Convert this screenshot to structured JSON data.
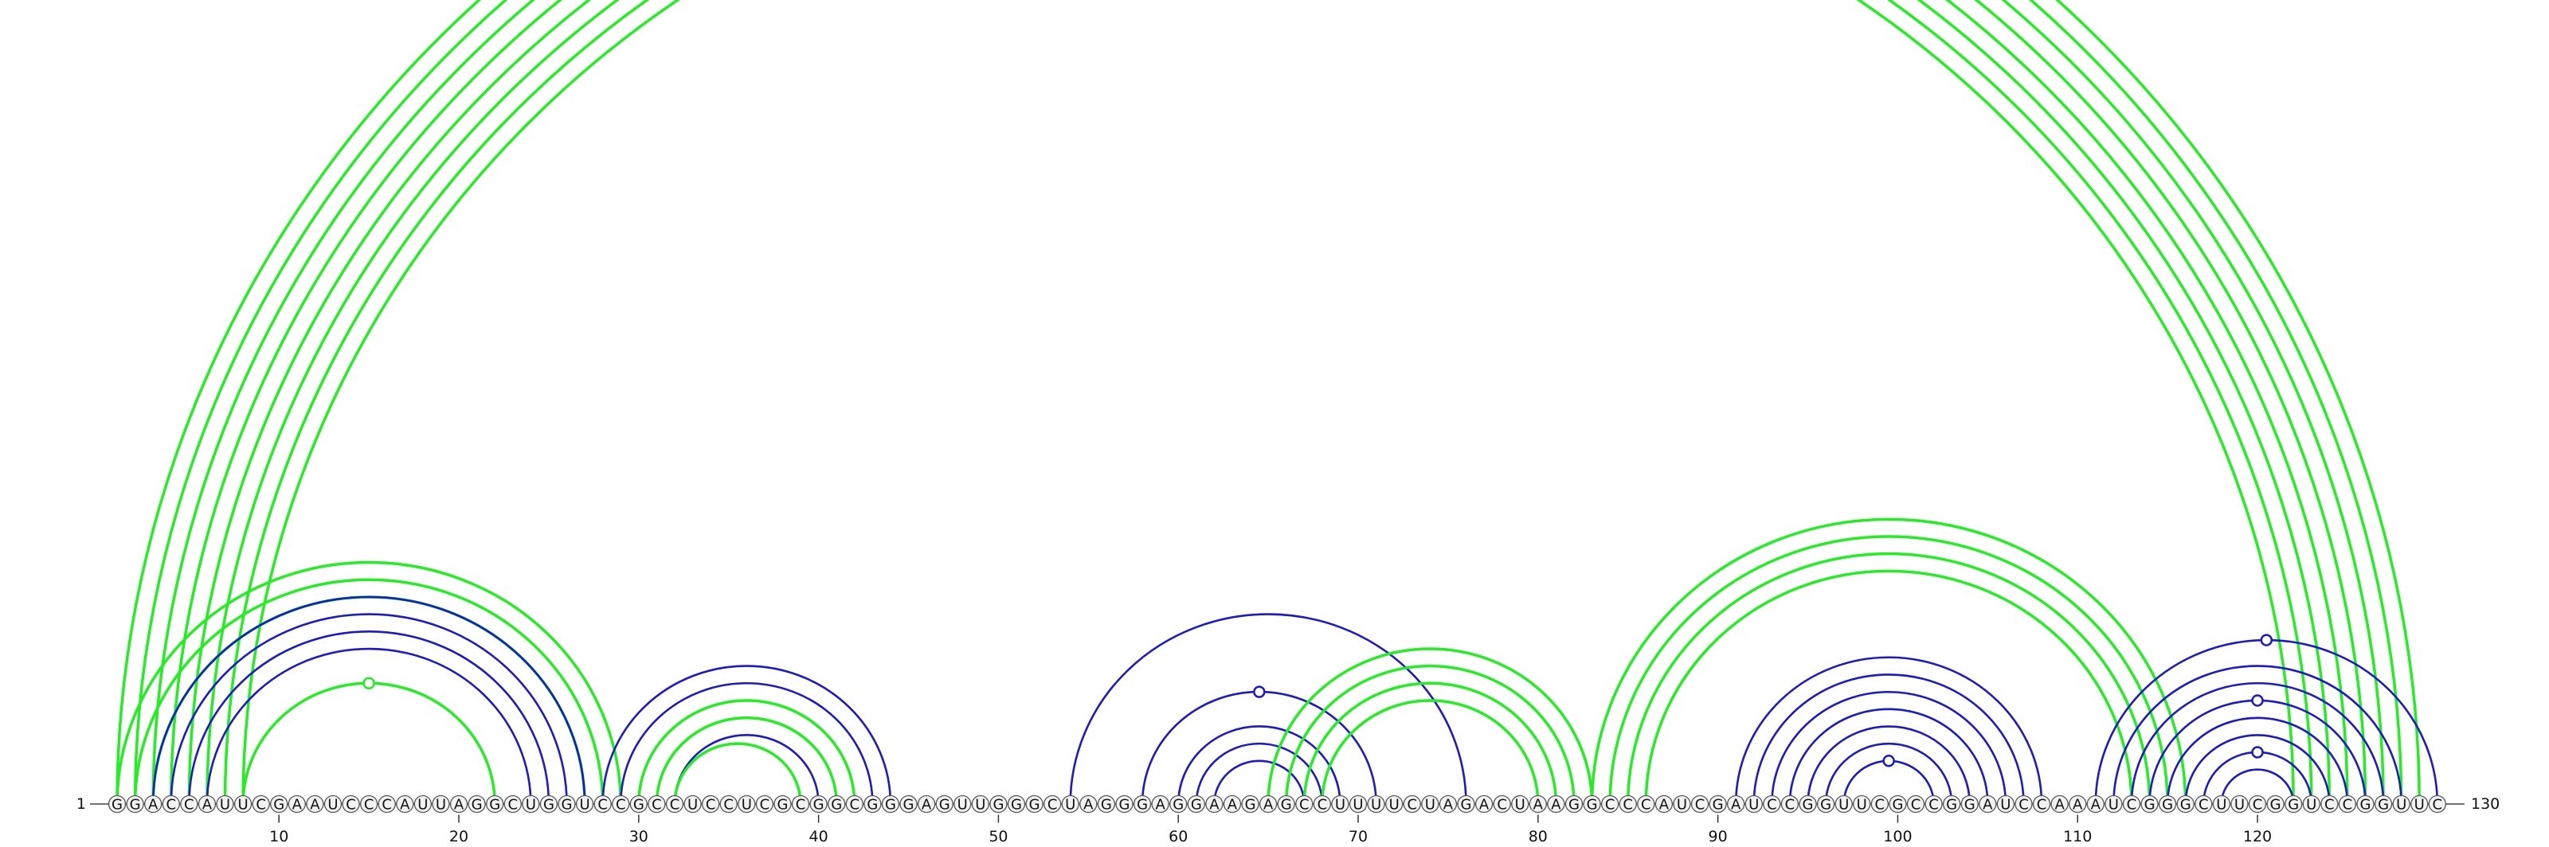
{
  "sequence": "GGACCAUUCGAAUCCCAUUAGGCUGGUCCGCCUCCUCGCGGCGGGAGUUGGGCUAGGGAGGAAGAGCCUUUUCUAGACUAAGGCCCAUCGAUCCGGUUCGCCGGAUCCAAAUCGGGCUUCGGUCCGGUUC",
  "start_label": "1",
  "end_label": "130",
  "position_ticks": [
    10,
    20,
    30,
    40,
    50,
    60,
    70,
    80,
    90,
    100,
    110,
    120
  ],
  "colors": {
    "green": "#22ee22",
    "blue": "#1a1acc",
    "node_fill": "#f2f2f2",
    "node_stroke": "#555555"
  },
  "arcs": [
    {
      "structure": "green",
      "i": 1,
      "j": 129
    },
    {
      "structure": "green",
      "i": 2,
      "j": 128
    },
    {
      "structure": "green",
      "i": 3,
      "j": 127
    },
    {
      "structure": "green",
      "i": 4,
      "j": 126
    },
    {
      "structure": "green",
      "i": 5,
      "j": 125
    },
    {
      "structure": "green",
      "i": 6,
      "j": 124
    },
    {
      "structure": "green",
      "i": 7,
      "j": 123
    },
    {
      "structure": "green",
      "i": 8,
      "j": 122
    },
    {
      "structure": "green",
      "i": 1,
      "j": 29
    },
    {
      "structure": "green",
      "i": 2,
      "j": 28
    },
    {
      "structure": "green",
      "i": 3,
      "j": 27
    },
    {
      "structure": "green",
      "i": 8,
      "j": 22
    },
    {
      "structure": "blue",
      "i": 3,
      "j": 27
    },
    {
      "structure": "blue",
      "i": 4,
      "j": 26
    },
    {
      "structure": "blue",
      "i": 5,
      "j": 25
    },
    {
      "structure": "blue",
      "i": 6,
      "j": 24
    },
    {
      "structure": "blue",
      "i": 28,
      "j": 44
    },
    {
      "structure": "blue",
      "i": 29,
      "j": 43
    },
    {
      "structure": "blue",
      "i": 30,
      "j": 42
    },
    {
      "structure": "blue",
      "i": 31,
      "j": 41
    },
    {
      "structure": "blue",
      "i": 32,
      "j": 40
    },
    {
      "structure": "green",
      "i": 30,
      "j": 42
    },
    {
      "structure": "green",
      "i": 31,
      "j": 41
    },
    {
      "structure": "green",
      "i": 32,
      "j": 39
    },
    {
      "structure": "blue",
      "i": 54,
      "j": 76
    },
    {
      "structure": "blue",
      "i": 58,
      "j": 71
    },
    {
      "structure": "blue",
      "i": 60,
      "j": 69
    },
    {
      "structure": "blue",
      "i": 61,
      "j": 68
    },
    {
      "structure": "blue",
      "i": 62,
      "j": 67
    },
    {
      "structure": "green",
      "i": 65,
      "j": 83
    },
    {
      "structure": "green",
      "i": 66,
      "j": 82
    },
    {
      "structure": "green",
      "i": 67,
      "j": 81
    },
    {
      "structure": "green",
      "i": 68,
      "j": 80
    },
    {
      "structure": "green",
      "i": 83,
      "j": 116
    },
    {
      "structure": "green",
      "i": 84,
      "j": 115
    },
    {
      "structure": "green",
      "i": 85,
      "j": 114
    },
    {
      "structure": "green",
      "i": 86,
      "j": 113
    },
    {
      "structure": "blue",
      "i": 91,
      "j": 108
    },
    {
      "structure": "blue",
      "i": 92,
      "j": 107
    },
    {
      "structure": "blue",
      "i": 93,
      "j": 106
    },
    {
      "structure": "blue",
      "i": 94,
      "j": 105
    },
    {
      "structure": "blue",
      "i": 95,
      "j": 104
    },
    {
      "structure": "blue",
      "i": 96,
      "j": 103
    },
    {
      "structure": "blue",
      "i": 97,
      "j": 102
    },
    {
      "structure": "blue",
      "i": 111,
      "j": 130
    },
    {
      "structure": "blue",
      "i": 112,
      "j": 128
    },
    {
      "structure": "blue",
      "i": 113,
      "j": 127
    },
    {
      "structure": "blue",
      "i": 114,
      "j": 126
    },
    {
      "structure": "blue",
      "i": 115,
      "j": 125
    },
    {
      "structure": "blue",
      "i": 116,
      "j": 124
    },
    {
      "structure": "blue",
      "i": 117,
      "j": 123
    },
    {
      "structure": "blue",
      "i": 118,
      "j": 122
    }
  ],
  "markers": [
    {
      "structure": "green",
      "i": 1,
      "j": 129
    },
    {
      "structure": "green",
      "i": 8,
      "j": 22
    },
    {
      "structure": "blue",
      "i": 58,
      "j": 71
    },
    {
      "structure": "blue",
      "i": 97,
      "j": 102
    },
    {
      "structure": "blue",
      "i": 111,
      "j": 130
    },
    {
      "structure": "blue",
      "i": 114,
      "j": 126
    },
    {
      "structure": "blue",
      "i": 117,
      "j": 123
    }
  ]
}
